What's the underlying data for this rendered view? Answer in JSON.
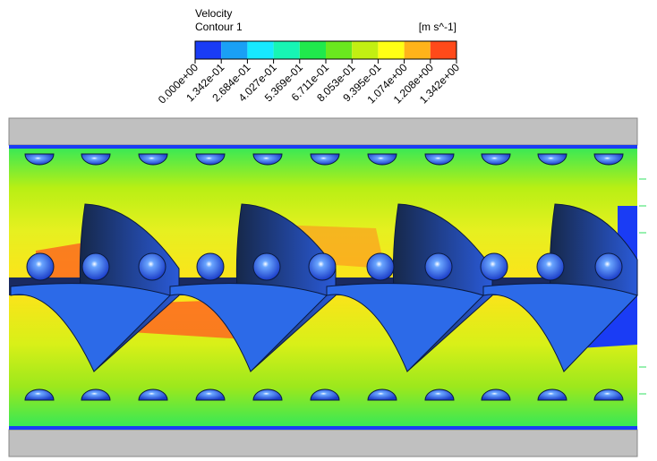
{
  "legend": {
    "title": "Velocity",
    "subtitle": "Contour 1",
    "unit": "[m s^-1]",
    "colors": [
      "#1a3cf5",
      "#1aa0f5",
      "#16e9ff",
      "#17f5b4",
      "#20e94c",
      "#6ae81e",
      "#c2ef12",
      "#ffff15",
      "#ffb31a",
      "#ff4a1a"
    ],
    "ticks": [
      "0.000e+00",
      "1.342e-01",
      "2.684e-01",
      "4.027e-01",
      "5.369e-01",
      "6.711e-01",
      "8.053e-01",
      "9.395e-01",
      "1.074e+00",
      "1.208e+00",
      "1.342e+00"
    ]
  }
}
